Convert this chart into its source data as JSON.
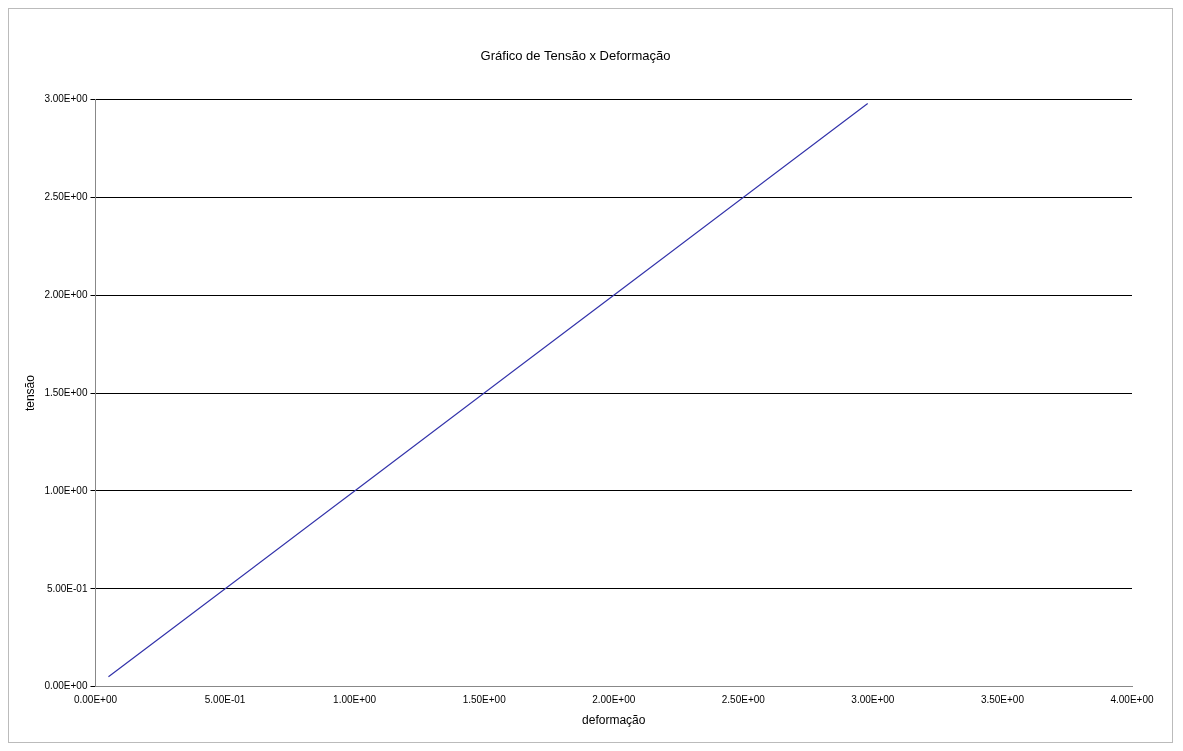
{
  "chart_data": {
    "type": "line",
    "title": "Gráfico de Tensão x Deformação",
    "xlabel": "deformação",
    "ylabel": "tensão",
    "series": [
      {
        "color": "#3333aa",
        "x": [
          0.05,
          1.0,
          2.0,
          2.98
        ],
        "values": [
          0.05,
          1.0,
          2.0,
          2.98
        ]
      }
    ],
    "xlim": [
      0,
      4
    ],
    "xticks": [
      {
        "value": 0,
        "label": "0.00E+00"
      },
      {
        "value": 0.5,
        "label": "5.00E-01"
      },
      {
        "value": 1,
        "label": "1.00E+00"
      },
      {
        "value": 1.5,
        "label": "1.50E+00"
      },
      {
        "value": 2,
        "label": "2.00E+00"
      },
      {
        "value": 2.5,
        "label": "2.50E+00"
      },
      {
        "value": 3,
        "label": "3.00E+00"
      },
      {
        "value": 3.5,
        "label": "3.50E+00"
      },
      {
        "value": 4,
        "label": "4.00E+00"
      }
    ],
    "ylim": [
      0,
      3
    ],
    "yticks": [
      {
        "value": 0,
        "label": "0.00E+00"
      },
      {
        "value": 0.5,
        "label": "5.00E-01"
      },
      {
        "value": 1,
        "label": "1.00E+00"
      },
      {
        "value": 1.5,
        "label": "1.50E+00"
      },
      {
        "value": 2,
        "label": "2.00E+00"
      },
      {
        "value": 2.5,
        "label": "2.50E+00"
      },
      {
        "value": 3,
        "label": "3.00E+00"
      }
    ],
    "grid": "y",
    "legend": false,
    "marker": "none",
    "line_style": "solid"
  }
}
